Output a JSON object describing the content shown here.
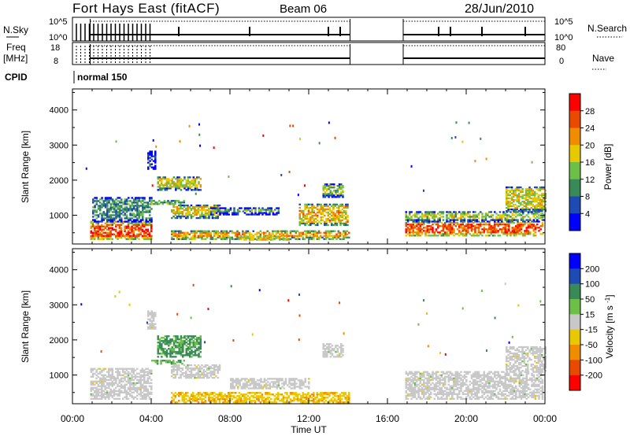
{
  "header": {
    "station": "Fort Hays East (fitACF)",
    "beam": "Beam 06",
    "date": "28/Jun/2010"
  },
  "summary": {
    "nsky_label": "N.Sky",
    "nsky_ticks": [
      "10^5",
      "10^0"
    ],
    "nsearch_label": "N.Search",
    "nsearch_ticks": [
      "10^5",
      "10^0"
    ],
    "freq_label_line1": "Freq",
    "freq_label_line2": "[MHz]",
    "freq_ticks": [
      "18",
      "8"
    ],
    "nave_label": "Nave",
    "nave_ticks": [
      "80",
      "0"
    ],
    "cpid_label": "CPID",
    "cpid_value": "normal 150"
  },
  "colors": {
    "power_scale": [
      "#0000ff",
      "#1e4ab4",
      "#3a8a58",
      "#6cc048",
      "#e8c800",
      "#f08c00",
      "#e84a00",
      "#ff0000"
    ],
    "velocity_scale": [
      "#0000ff",
      "#1e4ab4",
      "#3a8a58",
      "#6cc048",
      "#c8c8c8",
      "#e8c800",
      "#f08c00",
      "#e84a00",
      "#ff0000"
    ],
    "ground_scatter": "#c8c8c8"
  },
  "chart_data": [
    {
      "type": "heatmap",
      "title": "",
      "xlabel": "Time UT",
      "ylabel": "Slant Range [km]",
      "xlim": [
        "00:00",
        "00:00"
      ],
      "x_ticks": [
        "00:00",
        "04:00",
        "08:00",
        "12:00",
        "16:00",
        "20:00",
        "00:00"
      ],
      "ylim": [
        180,
        4600
      ],
      "y_ticks": [
        1000,
        2000,
        3000,
        4000
      ],
      "colorbar": {
        "label": "Power [dB]",
        "ticks": [
          4,
          8,
          12,
          16,
          20,
          24,
          28
        ]
      },
      "data_gaps_hours": [
        [
          14.1,
          16.8
        ]
      ],
      "regions": [
        {
          "t": [
            0.9,
            4.0
          ],
          "r": [
            300,
            800
          ],
          "value": 26
        },
        {
          "t": [
            1.0,
            4.0
          ],
          "r": [
            800,
            1500
          ],
          "value": 10
        },
        {
          "t": [
            3.8,
            4.2
          ],
          "r": [
            2300,
            2800
          ],
          "value": 4
        },
        {
          "t": [
            4.0,
            5.7
          ],
          "r": [
            1300,
            1400
          ],
          "value": 22
        },
        {
          "t": [
            4.3,
            6.5
          ],
          "r": [
            1700,
            2100
          ],
          "value": 17
        },
        {
          "t": [
            5.0,
            7.5
          ],
          "r": [
            900,
            1300
          ],
          "value": 18
        },
        {
          "t": [
            5.0,
            14.0
          ],
          "r": [
            300,
            550
          ],
          "value": 22
        },
        {
          "t": [
            8.5,
            11.0
          ],
          "r": [
            280,
            400
          ],
          "value": 27
        },
        {
          "t": [
            7.0,
            10.5
          ],
          "r": [
            1000,
            1200
          ],
          "value": 12
        },
        {
          "t": [
            11.5,
            14.0
          ],
          "r": [
            700,
            1300
          ],
          "value": 20
        },
        {
          "t": [
            12.7,
            13.7
          ],
          "r": [
            1500,
            1900
          ],
          "value": 14
        },
        {
          "t": [
            16.9,
            23.9
          ],
          "r": [
            400,
            800
          ],
          "value": 26
        },
        {
          "t": [
            16.9,
            24.0
          ],
          "r": [
            800,
            1100
          ],
          "value": 16
        },
        {
          "t": [
            22.0,
            24.0
          ],
          "r": [
            1100,
            1800
          ],
          "value": 17
        }
      ]
    },
    {
      "type": "heatmap",
      "title": "",
      "xlabel": "Time UT",
      "ylabel": "Slant Range [km]",
      "xlim": [
        "00:00",
        "00:00"
      ],
      "x_ticks": [
        "00:00",
        "04:00",
        "08:00",
        "12:00",
        "16:00",
        "20:00",
        "00:00"
      ],
      "ylim": [
        180,
        4600
      ],
      "y_ticks": [
        1000,
        2000,
        3000,
        4000
      ],
      "colorbar": {
        "label": "Velocity [m s-1]",
        "ticks": [
          200,
          100,
          50,
          15,
          -15,
          -50,
          -100,
          -200
        ]
      },
      "data_gaps_hours": [
        [
          14.1,
          16.8
        ]
      ],
      "regions": [
        {
          "t": [
            0.9,
            4.0
          ],
          "r": [
            300,
            1200
          ],
          "value": 0,
          "ground_scatter": true
        },
        {
          "t": [
            3.8,
            4.2
          ],
          "r": [
            2300,
            2800
          ],
          "value": 0,
          "ground_scatter": true
        },
        {
          "t": [
            4.3,
            6.5
          ],
          "r": [
            1500,
            2100
          ],
          "value": 60
        },
        {
          "t": [
            4.0,
            5.7
          ],
          "r": [
            1300,
            1400
          ],
          "value": 40
        },
        {
          "t": [
            5.0,
            7.5
          ],
          "r": [
            900,
            1300
          ],
          "value": 0,
          "ground_scatter": true
        },
        {
          "t": [
            5.0,
            14.0
          ],
          "r": [
            200,
            500
          ],
          "value": -40
        },
        {
          "t": [
            8.0,
            12.0
          ],
          "r": [
            600,
            900
          ],
          "value": 0,
          "ground_scatter": true
        },
        {
          "t": [
            12.7,
            13.7
          ],
          "r": [
            1500,
            1900
          ],
          "value": 0,
          "ground_scatter": true
        },
        {
          "t": [
            16.9,
            23.9
          ],
          "r": [
            300,
            1100
          ],
          "value": 0,
          "ground_scatter": true
        },
        {
          "t": [
            22.0,
            24.0
          ],
          "r": [
            1100,
            1800
          ],
          "value": 0,
          "ground_scatter": true
        }
      ]
    }
  ]
}
